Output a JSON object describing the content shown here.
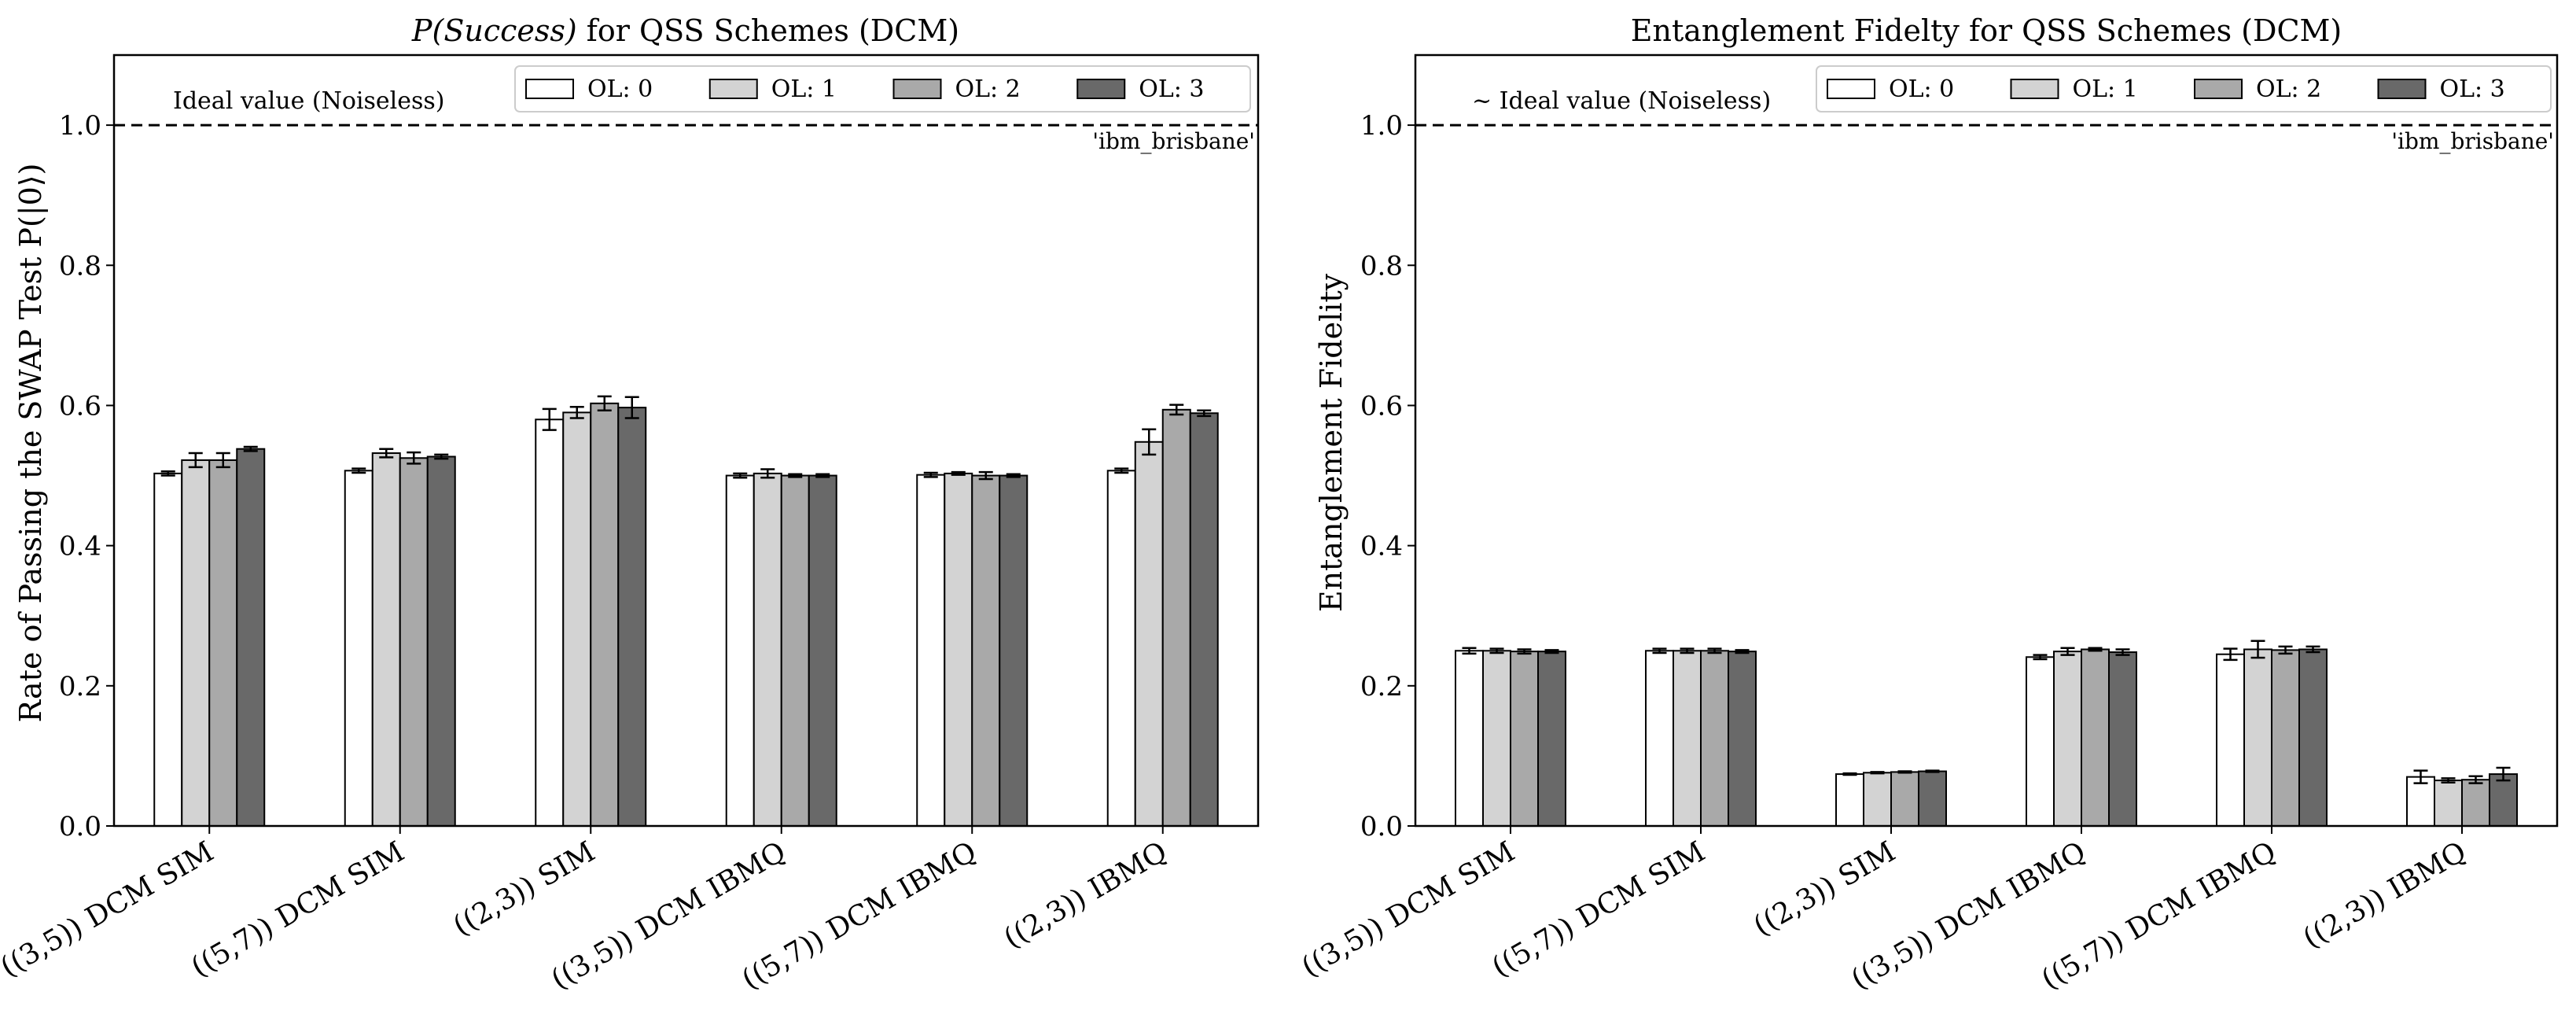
{
  "chart_data": [
    {
      "type": "bar",
      "title_prefix": "P(Success)",
      "title_suffix": " for QSS Schemes (DCM)",
      "xlabel": "",
      "ylabel": "Rate of Passing the SWAP Test P(|0⟩)",
      "ylim": [
        0,
        1.1
      ],
      "yticks": [
        "0.0",
        "0.2",
        "0.4",
        "0.6",
        "0.8",
        "1.0"
      ],
      "ytick_values": [
        0,
        0.2,
        0.4,
        0.6,
        0.8,
        1.0
      ],
      "grid": false,
      "legend_position": "top-right",
      "categories": [
        "((3,5)) DCM SIM",
        "((5,7)) DCM SIM",
        "((2,3)) SIM",
        "((3,5)) DCM IBMQ",
        "((5,7)) DCM IBMQ",
        "((2,3)) IBMQ"
      ],
      "series": [
        {
          "name": "OL: 0",
          "color": "#ffffff",
          "values": [
            0.503,
            0.507,
            0.58,
            0.5,
            0.501,
            0.507
          ],
          "errors": [
            0.003,
            0.003,
            0.015,
            0.003,
            0.003,
            0.003
          ]
        },
        {
          "name": "OL: 1",
          "color": "#d3d3d3",
          "values": [
            0.522,
            0.532,
            0.59,
            0.503,
            0.503,
            0.548
          ],
          "errors": [
            0.01,
            0.006,
            0.008,
            0.006,
            0.002,
            0.018
          ]
        },
        {
          "name": "OL: 2",
          "color": "#a9a9a9",
          "values": [
            0.522,
            0.525,
            0.603,
            0.5,
            0.5,
            0.594
          ],
          "errors": [
            0.01,
            0.008,
            0.01,
            0.002,
            0.005,
            0.007
          ]
        },
        {
          "name": "OL: 3",
          "color": "#696969",
          "values": [
            0.538,
            0.527,
            0.597,
            0.5,
            0.5,
            0.589
          ],
          "errors": [
            0.003,
            0.003,
            0.015,
            0.002,
            0.002,
            0.004
          ]
        }
      ],
      "ideal_line": {
        "value": 1.0,
        "label": "Ideal value (Noiseless)"
      },
      "backend_label": "'ibm_brisbane'"
    },
    {
      "type": "bar",
      "title": "Entanglement Fidelty for QSS Schemes (DCM)",
      "xlabel": "",
      "ylabel": "Entanglement Fidelity",
      "ylim": [
        0,
        1.1
      ],
      "yticks": [
        "0.0",
        "0.2",
        "0.4",
        "0.6",
        "0.8",
        "1.0"
      ],
      "ytick_values": [
        0,
        0.2,
        0.4,
        0.6,
        0.8,
        1.0
      ],
      "grid": false,
      "legend_position": "top-right",
      "categories": [
        "((3,5)) DCM SIM",
        "((5,7)) DCM SIM",
        "((2,3)) SIM",
        "((3,5)) DCM IBMQ",
        "((5,7)) DCM IBMQ",
        "((2,3)) IBMQ"
      ],
      "series": [
        {
          "name": "OL: 0",
          "color": "#ffffff",
          "values": [
            0.25,
            0.25,
            0.074,
            0.241,
            0.245,
            0.07
          ],
          "errors": [
            0.004,
            0.003,
            0.001,
            0.003,
            0.008,
            0.009
          ]
        },
        {
          "name": "OL: 1",
          "color": "#d3d3d3",
          "values": [
            0.25,
            0.25,
            0.076,
            0.249,
            0.252,
            0.065
          ],
          "errors": [
            0.003,
            0.003,
            0.001,
            0.005,
            0.012,
            0.003
          ]
        },
        {
          "name": "OL: 2",
          "color": "#a9a9a9",
          "values": [
            0.249,
            0.25,
            0.077,
            0.252,
            0.251,
            0.066
          ],
          "errors": [
            0.003,
            0.003,
            0.001,
            0.002,
            0.005,
            0.005
          ]
        },
        {
          "name": "OL: 3",
          "color": "#696969",
          "values": [
            0.249,
            0.249,
            0.078,
            0.248,
            0.252,
            0.074
          ],
          "errors": [
            0.002,
            0.002,
            0.001,
            0.004,
            0.004,
            0.009
          ]
        }
      ],
      "ideal_line": {
        "value": 1.0,
        "label": "~ Ideal value (Noiseless)"
      },
      "backend_label": "'ibm_brisbane'"
    }
  ]
}
